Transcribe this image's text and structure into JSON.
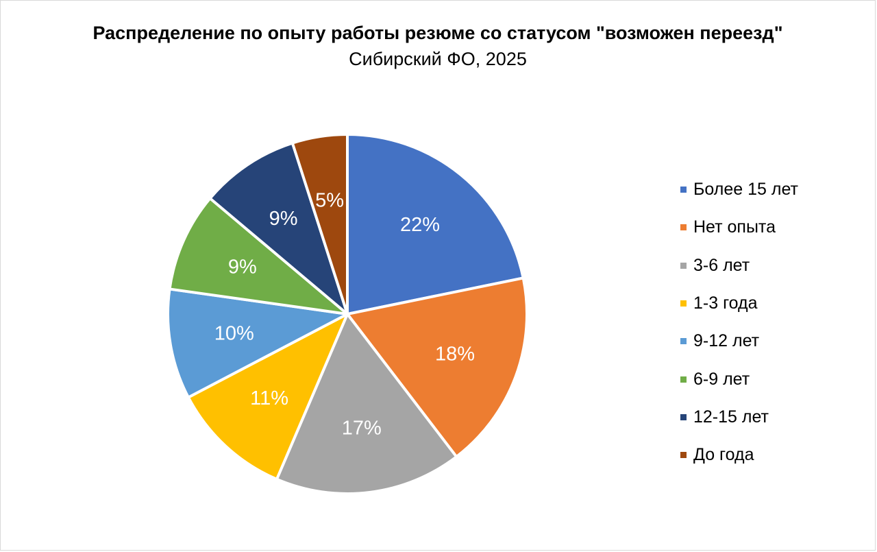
{
  "chart_data": {
    "type": "pie",
    "title": "Распределение по опыту работы резюме со статусом \"возможен переезд\"",
    "subtitle": "Сибирский ФО, 2025",
    "legend_position": "right",
    "slices": [
      {
        "label": "Более 15 лет",
        "value": 22,
        "display": "22%",
        "color": "#4472C4"
      },
      {
        "label": "Нет опыта",
        "value": 18,
        "display": "18%",
        "color": "#ED7D31"
      },
      {
        "label": "3-6 лет",
        "value": 17,
        "display": "17%",
        "color": "#A5A5A5"
      },
      {
        "label": "1-3 года",
        "value": 11,
        "display": "11%",
        "color": "#FFC000"
      },
      {
        "label": "9-12 лет",
        "value": 10,
        "display": "10%",
        "color": "#5B9BD5"
      },
      {
        "label": "6-9 лет",
        "value": 9,
        "display": "9%",
        "color": "#70AD47"
      },
      {
        "label": "12-15 лет",
        "value": 9,
        "display": "9%",
        "color": "#264478"
      },
      {
        "label": "До года",
        "value": 5,
        "display": "5%",
        "color": "#9E480E"
      }
    ]
  }
}
